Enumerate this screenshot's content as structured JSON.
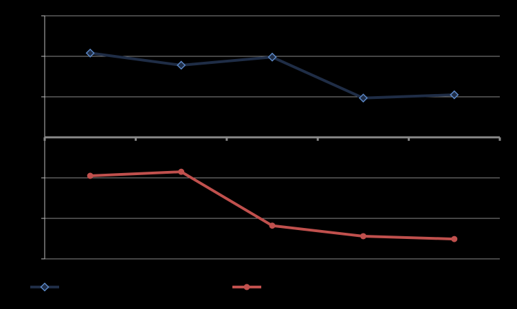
{
  "colors": {
    "background": "#000000",
    "gridline": "#8c8c8c",
    "axis": "#bfbfbf",
    "zero_axis": "#8a8a8a",
    "series_blue": "#1f2d46",
    "series_blue_marker_stroke": "#5b87c5",
    "series_red": "#c0504d"
  },
  "chart_data": {
    "type": "line",
    "title": "",
    "xlabel": "",
    "ylabel": "",
    "x": [
      1,
      2,
      3,
      4,
      5
    ],
    "ylim": [
      -3,
      3
    ],
    "yticks": [
      -3,
      -2,
      -1,
      0,
      1,
      2,
      3
    ],
    "grid": true,
    "legend_position": "bottom",
    "series": [
      {
        "values": [
          2.08,
          1.78,
          1.98,
          0.97,
          1.05
        ],
        "marker": "diamond",
        "color": "#1f2d46"
      },
      {
        "values": [
          -0.95,
          -0.85,
          -2.18,
          -2.44,
          -2.51
        ],
        "marker": "circle",
        "color": "#c0504d"
      }
    ]
  }
}
